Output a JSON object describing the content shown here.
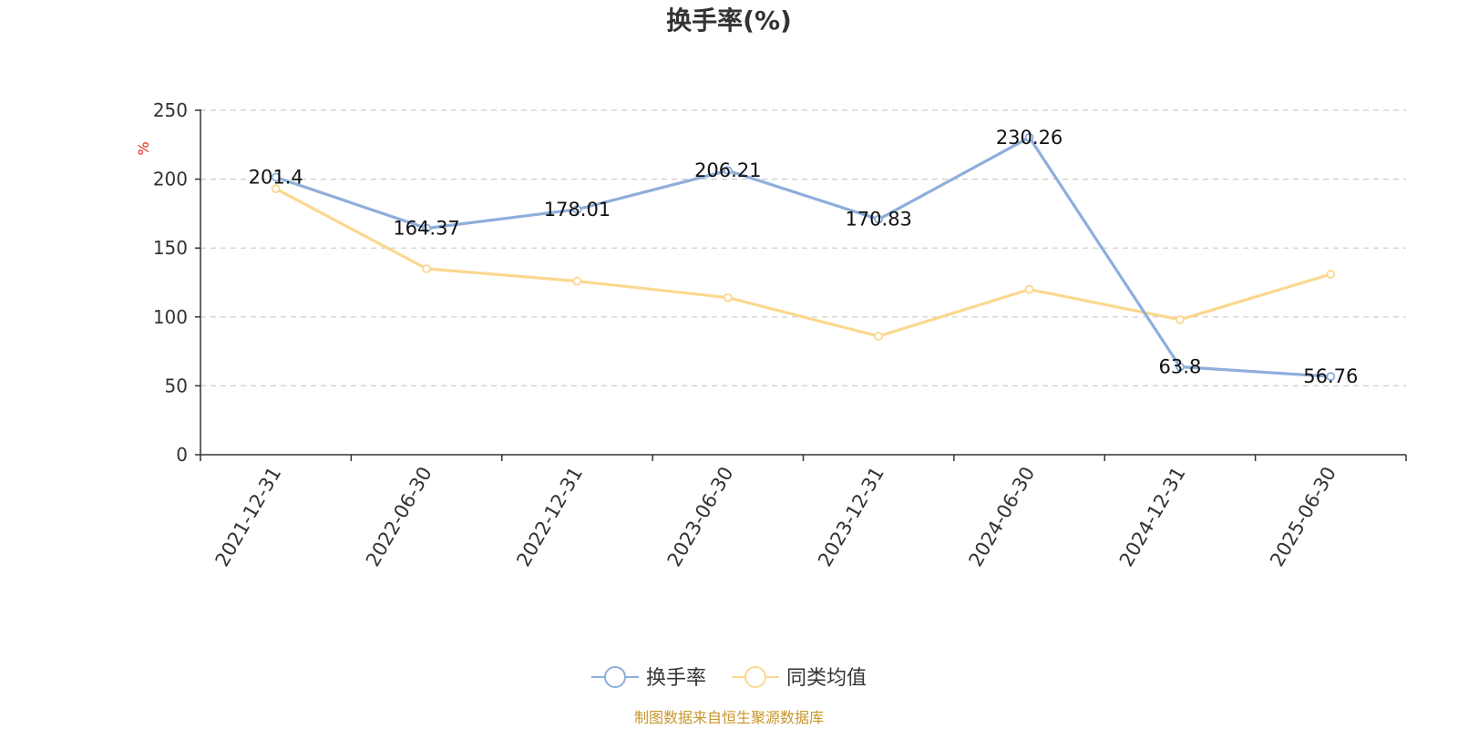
{
  "chart_data": {
    "type": "line",
    "title": "换手率(%)",
    "ylabel": "%",
    "ylim": [
      0,
      250
    ],
    "yticks": [
      0,
      50,
      100,
      150,
      200,
      250
    ],
    "grid": true,
    "legend_position": "bottom",
    "categories": [
      "2021-12-31",
      "2022-06-30",
      "2022-12-31",
      "2023-06-30",
      "2023-12-31",
      "2024-06-30",
      "2024-12-31",
      "2025-06-30"
    ],
    "series": [
      {
        "name": "换手率",
        "color": "#8eaedb",
        "values": [
          201.4,
          164.37,
          178.01,
          206.21,
          170.83,
          230.26,
          63.8,
          56.76
        ],
        "labels": [
          "201.4",
          "164.37",
          "178.01",
          "206.21",
          "170.83",
          "230.26",
          "63.8",
          "56.76"
        ],
        "show_labels": true
      },
      {
        "name": "同类均值",
        "color": "#fbd88f",
        "values": [
          193,
          135,
          126,
          114,
          86,
          120,
          98,
          131
        ],
        "show_labels": false
      }
    ]
  },
  "colors": {
    "axis": "#333333",
    "grid": "#cccccc",
    "unit": "#e8281e",
    "source": "#c9962b"
  },
  "source_note": "制图数据来自恒生聚源数据库"
}
